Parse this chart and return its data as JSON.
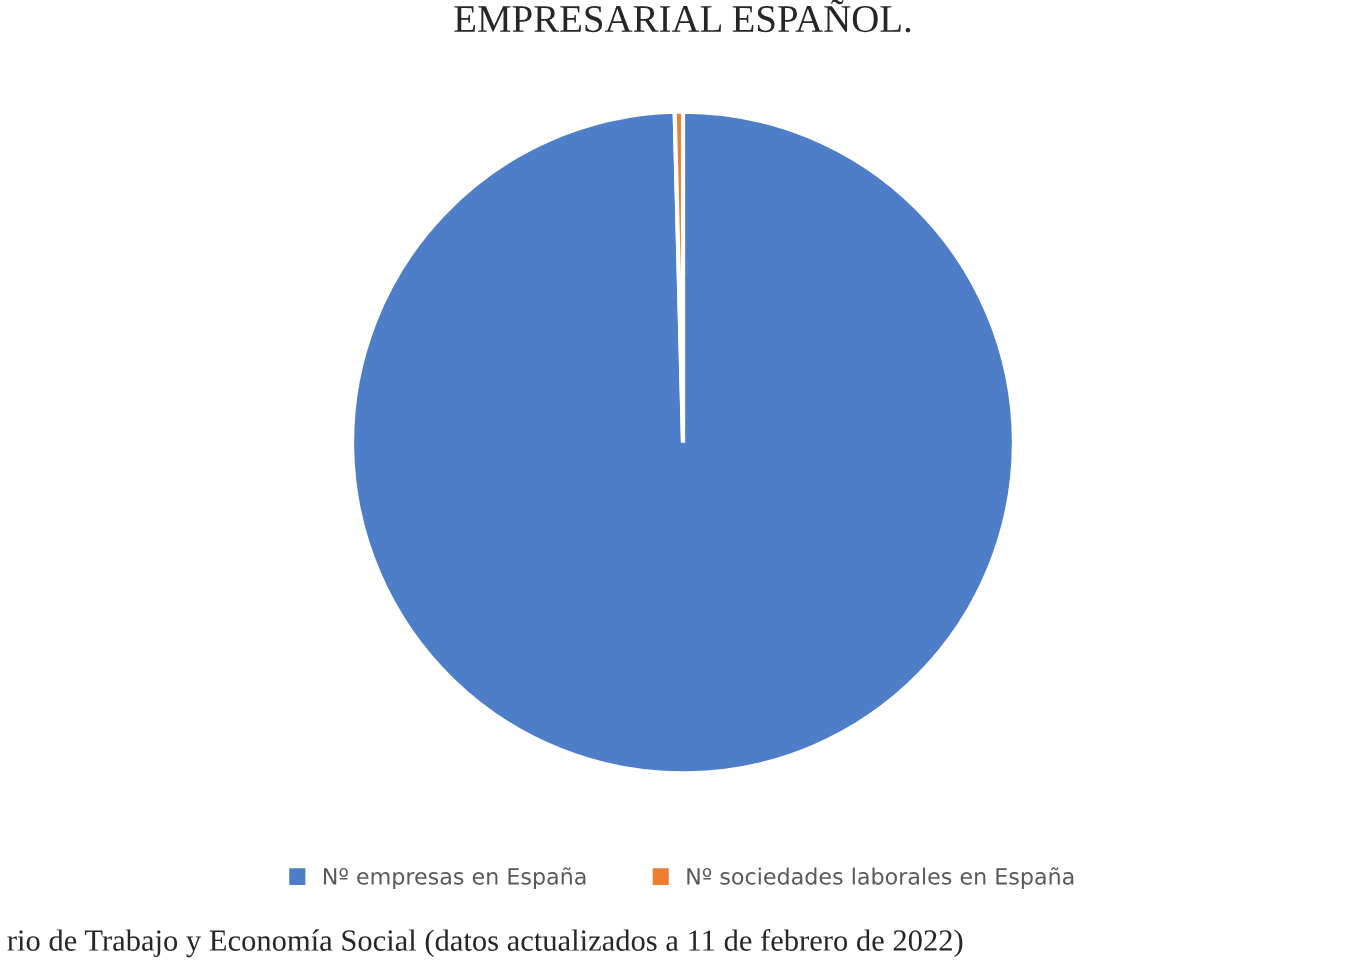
{
  "chart_data": {
    "type": "pie",
    "title": "EMPRESARIAL ESPAÑOL.",
    "categories": [
      "Nº empresas en España",
      "Nº sociedades laborales en España"
    ],
    "values": [
      99.6,
      0.4
    ],
    "colors": [
      "#4e7ec8",
      "#ed7d31"
    ],
    "legend": "bottom",
    "annotations": [
      "rio de Trabajo y Economía Social (datos actualizados a 11 de febrero de 2022)"
    ]
  }
}
